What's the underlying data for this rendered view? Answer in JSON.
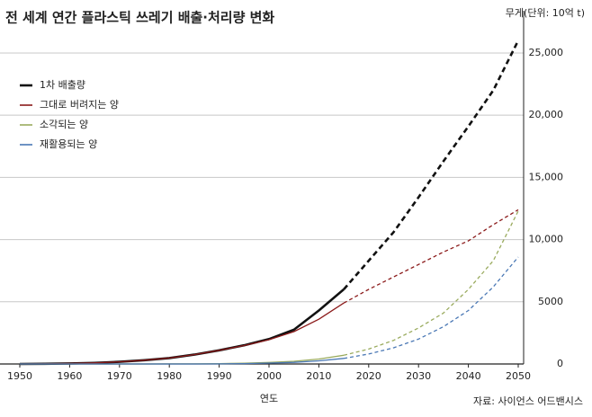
{
  "chart_data": {
    "type": "line",
    "title": "전 세계 연간 플라스틱 쓰레기 배출·처리량 변화",
    "unit_label": "무게(단위: 10억 t)",
    "x_label": "연도",
    "source": "자료: 사이언스 어드밴시스",
    "x": [
      1950,
      1955,
      1960,
      1965,
      1970,
      1975,
      1980,
      1985,
      1990,
      1995,
      2000,
      2005,
      2010,
      2015,
      2020,
      2025,
      2030,
      2035,
      2040,
      2045,
      2050
    ],
    "xlim": [
      1950,
      2050
    ],
    "xticks": [
      1950,
      1960,
      1970,
      1980,
      1990,
      2000,
      2010,
      2020,
      2030,
      2040,
      2050
    ],
    "ylim": [
      0,
      27000
    ],
    "yticks": [
      0,
      5000,
      {
        "value": 10000,
        "label": "10,000"
      },
      {
        "value": 15000,
        "label": "15,000"
      },
      {
        "value": 20000,
        "label": "20,000"
      },
      {
        "value": 25000,
        "label": "25,000"
      }
    ],
    "grid": true,
    "legend": "upper left",
    "dashed_from": 2015,
    "series": [
      {
        "name": "1차 배출량",
        "color": "#111111",
        "values": [
          0,
          15,
          40,
          90,
          170,
          300,
          480,
          750,
          1100,
          1500,
          2000,
          2750,
          4300,
          6000,
          8300,
          10600,
          13400,
          16300,
          19100,
          22000,
          26000
        ]
      },
      {
        "name": "그대로 버려지는 양",
        "color": "#8b1a1a",
        "values": [
          0,
          15,
          40,
          90,
          170,
          300,
          480,
          750,
          1100,
          1480,
          1950,
          2600,
          3600,
          4900,
          6000,
          7000,
          8000,
          9000,
          9900,
          11200,
          12400
        ]
      },
      {
        "name": "소각되는 양",
        "color": "#9aab5e",
        "values": [
          0,
          0,
          0,
          0,
          0,
          0,
          5,
          10,
          30,
          60,
          120,
          220,
          400,
          700,
          1200,
          1900,
          2900,
          4100,
          6000,
          8300,
          12300
        ]
      },
      {
        "name": "재활용되는 양",
        "color": "#4a78b5",
        "values": [
          0,
          0,
          0,
          0,
          0,
          0,
          0,
          0,
          10,
          30,
          70,
          130,
          250,
          450,
          800,
          1300,
          2000,
          3000,
          4300,
          6200,
          8600
        ]
      }
    ]
  }
}
